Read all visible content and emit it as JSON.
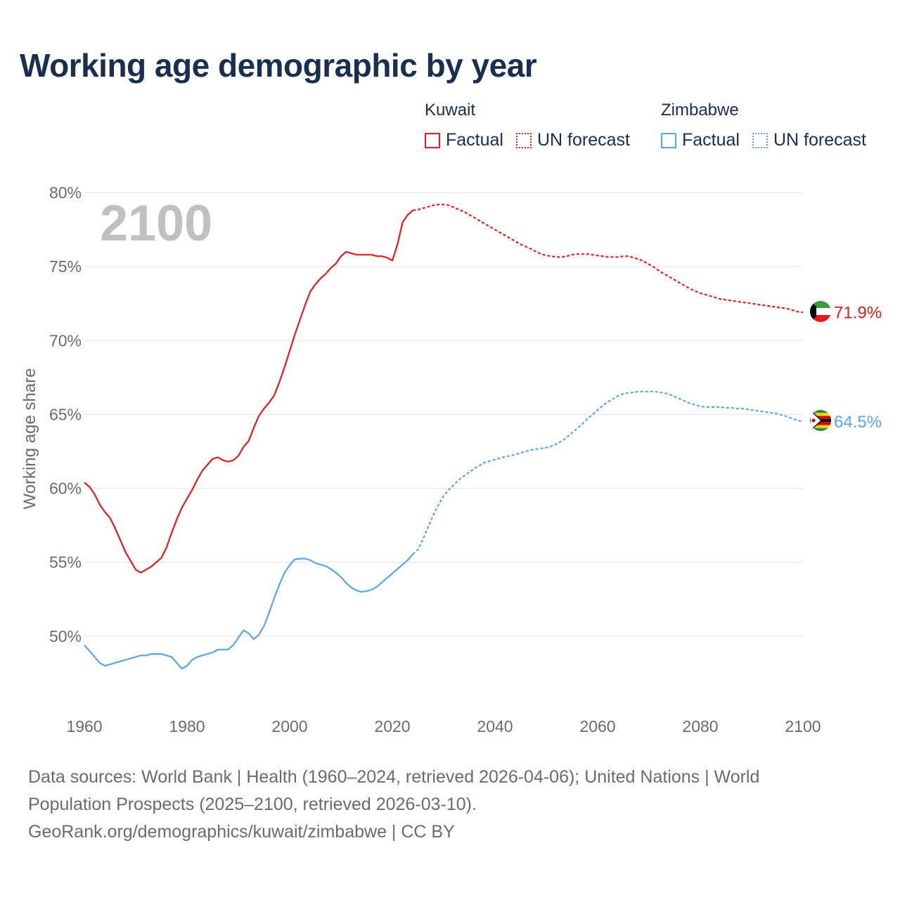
{
  "title": "Working age demographic by year",
  "legend": {
    "kuwait": {
      "name": "Kuwait",
      "factual": "Factual",
      "forecast": "UN forecast"
    },
    "zimbabwe": {
      "name": "Zimbabwe",
      "factual": "Factual",
      "forecast": "UN forecast"
    }
  },
  "colors": {
    "kuwait": "#e8191b",
    "zimbabwe": "#5ba4e6",
    "grid": "#e4e4e4",
    "axis_text": "#6b6b6b",
    "year_watermark": "#c0c0c0"
  },
  "footer": {
    "line1": "Data sources: World Bank | Health (1960–2024, retrieved 2026-04-06); United Nations | World",
    "line2": "Population Prospects (2025–2100, retrieved 2026-03-10).",
    "line3": "GeoRank.org/demographics/kuwait/zimbabwe | CC BY"
  },
  "chart_data": {
    "type": "line",
    "title": "Working age demographic by year",
    "ylabel": "Working age share",
    "xlabel": "",
    "xlim": [
      1960,
      2100
    ],
    "ylim": [
      45,
      80
    ],
    "x_ticks": [
      "1960",
      "1980",
      "2000",
      "2020",
      "2040",
      "2060",
      "2080",
      "2100"
    ],
    "y_ticks": [
      "50%",
      "55%",
      "60%",
      "65%",
      "70%",
      "75%",
      "80%"
    ],
    "year_label": "2100",
    "factual_end_year": 2024,
    "series": [
      {
        "name": "Kuwait",
        "key": "kuwait",
        "end_label": "71.9%",
        "points": [
          [
            1960,
            60.4
          ],
          [
            1961,
            60.1
          ],
          [
            1962,
            59.6
          ],
          [
            1963,
            58.9
          ],
          [
            1964,
            58.4
          ],
          [
            1965,
            58.0
          ],
          [
            1966,
            57.3
          ],
          [
            1967,
            56.5
          ],
          [
            1968,
            55.7
          ],
          [
            1969,
            55.1
          ],
          [
            1970,
            54.5
          ],
          [
            1971,
            54.3
          ],
          [
            1972,
            54.5
          ],
          [
            1973,
            54.7
          ],
          [
            1974,
            55.0
          ],
          [
            1975,
            55.3
          ],
          [
            1976,
            56.0
          ],
          [
            1977,
            57.0
          ],
          [
            1978,
            57.9
          ],
          [
            1979,
            58.7
          ],
          [
            1980,
            59.3
          ],
          [
            1981,
            59.9
          ],
          [
            1982,
            60.6
          ],
          [
            1983,
            61.2
          ],
          [
            1984,
            61.6
          ],
          [
            1985,
            62.0
          ],
          [
            1986,
            62.1
          ],
          [
            1987,
            61.9
          ],
          [
            1988,
            61.8
          ],
          [
            1989,
            61.9
          ],
          [
            1990,
            62.2
          ],
          [
            1991,
            62.8
          ],
          [
            1992,
            63.2
          ],
          [
            1993,
            64.1
          ],
          [
            1994,
            64.9
          ],
          [
            1995,
            65.4
          ],
          [
            1996,
            65.8
          ],
          [
            1997,
            66.3
          ],
          [
            1998,
            67.2
          ],
          [
            1999,
            68.2
          ],
          [
            2000,
            69.3
          ],
          [
            2001,
            70.4
          ],
          [
            2002,
            71.4
          ],
          [
            2003,
            72.4
          ],
          [
            2004,
            73.3
          ],
          [
            2005,
            73.8
          ],
          [
            2006,
            74.2
          ],
          [
            2007,
            74.5
          ],
          [
            2008,
            74.9
          ],
          [
            2009,
            75.2
          ],
          [
            2010,
            75.7
          ],
          [
            2011,
            76.0
          ],
          [
            2012,
            75.9
          ],
          [
            2013,
            75.8
          ],
          [
            2014,
            75.8
          ],
          [
            2015,
            75.8
          ],
          [
            2016,
            75.8
          ],
          [
            2017,
            75.7
          ],
          [
            2018,
            75.7
          ],
          [
            2019,
            75.6
          ],
          [
            2020,
            75.4
          ],
          [
            2021,
            76.5
          ],
          [
            2022,
            78.0
          ],
          [
            2023,
            78.5
          ],
          [
            2024,
            78.8
          ],
          [
            2025,
            78.85
          ],
          [
            2026,
            78.95
          ],
          [
            2027,
            79.05
          ],
          [
            2028,
            79.15
          ],
          [
            2029,
            79.2
          ],
          [
            2030,
            79.2
          ],
          [
            2031,
            79.15
          ],
          [
            2032,
            79.0
          ],
          [
            2033,
            78.85
          ],
          [
            2034,
            78.7
          ],
          [
            2035,
            78.5
          ],
          [
            2036,
            78.3
          ],
          [
            2037,
            78.1
          ],
          [
            2038,
            77.9
          ],
          [
            2039,
            77.7
          ],
          [
            2040,
            77.5
          ],
          [
            2041,
            77.3
          ],
          [
            2042,
            77.1
          ],
          [
            2043,
            76.9
          ],
          [
            2044,
            76.7
          ],
          [
            2045,
            76.5
          ],
          [
            2046,
            76.35
          ],
          [
            2047,
            76.2
          ],
          [
            2048,
            76.0
          ],
          [
            2049,
            75.85
          ],
          [
            2050,
            75.75
          ],
          [
            2051,
            75.7
          ],
          [
            2052,
            75.65
          ],
          [
            2053,
            75.65
          ],
          [
            2054,
            75.7
          ],
          [
            2055,
            75.8
          ],
          [
            2056,
            75.85
          ],
          [
            2057,
            75.85
          ],
          [
            2058,
            75.85
          ],
          [
            2059,
            75.8
          ],
          [
            2060,
            75.75
          ],
          [
            2061,
            75.7
          ],
          [
            2062,
            75.65
          ],
          [
            2063,
            75.65
          ],
          [
            2064,
            75.65
          ],
          [
            2065,
            75.7
          ],
          [
            2066,
            75.7
          ],
          [
            2067,
            75.6
          ],
          [
            2068,
            75.5
          ],
          [
            2069,
            75.35
          ],
          [
            2070,
            75.15
          ],
          [
            2071,
            74.95
          ],
          [
            2072,
            74.7
          ],
          [
            2073,
            74.5
          ],
          [
            2074,
            74.3
          ],
          [
            2075,
            74.1
          ],
          [
            2076,
            73.9
          ],
          [
            2077,
            73.7
          ],
          [
            2078,
            73.5
          ],
          [
            2079,
            73.35
          ],
          [
            2080,
            73.2
          ],
          [
            2081,
            73.1
          ],
          [
            2082,
            73.0
          ],
          [
            2083,
            72.9
          ],
          [
            2084,
            72.8
          ],
          [
            2085,
            72.75
          ],
          [
            2086,
            72.7
          ],
          [
            2087,
            72.65
          ],
          [
            2088,
            72.6
          ],
          [
            2089,
            72.55
          ],
          [
            2090,
            72.5
          ],
          [
            2091,
            72.45
          ],
          [
            2092,
            72.4
          ],
          [
            2093,
            72.35
          ],
          [
            2094,
            72.3
          ],
          [
            2095,
            72.25
          ],
          [
            2096,
            72.2
          ],
          [
            2097,
            72.15
          ],
          [
            2098,
            72.05
          ],
          [
            2099,
            71.95
          ],
          [
            2100,
            71.9
          ]
        ]
      },
      {
        "name": "Zimbabwe",
        "key": "zimbabwe",
        "end_label": "64.5%",
        "points": [
          [
            1960,
            49.4
          ],
          [
            1961,
            49.0
          ],
          [
            1962,
            48.6
          ],
          [
            1963,
            48.2
          ],
          [
            1964,
            48.0
          ],
          [
            1965,
            48.1
          ],
          [
            1966,
            48.2
          ],
          [
            1967,
            48.3
          ],
          [
            1968,
            48.4
          ],
          [
            1969,
            48.5
          ],
          [
            1970,
            48.6
          ],
          [
            1971,
            48.7
          ],
          [
            1972,
            48.7
          ],
          [
            1973,
            48.8
          ],
          [
            1974,
            48.8
          ],
          [
            1975,
            48.8
          ],
          [
            1976,
            48.7
          ],
          [
            1977,
            48.6
          ],
          [
            1978,
            48.2
          ],
          [
            1979,
            47.8
          ],
          [
            1980,
            48.0
          ],
          [
            1981,
            48.4
          ],
          [
            1982,
            48.6
          ],
          [
            1983,
            48.7
          ],
          [
            1984,
            48.8
          ],
          [
            1985,
            48.9
          ],
          [
            1986,
            49.1
          ],
          [
            1987,
            49.1
          ],
          [
            1988,
            49.1
          ],
          [
            1989,
            49.4
          ],
          [
            1990,
            49.9
          ],
          [
            1991,
            50.4
          ],
          [
            1992,
            50.2
          ],
          [
            1993,
            49.8
          ],
          [
            1994,
            50.1
          ],
          [
            1995,
            50.7
          ],
          [
            1996,
            51.6
          ],
          [
            1997,
            52.6
          ],
          [
            1998,
            53.5
          ],
          [
            1999,
            54.3
          ],
          [
            2000,
            54.8
          ],
          [
            2001,
            55.2
          ],
          [
            2002,
            55.25
          ],
          [
            2003,
            55.25
          ],
          [
            2004,
            55.15
          ],
          [
            2005,
            54.95
          ],
          [
            2006,
            54.85
          ],
          [
            2007,
            54.75
          ],
          [
            2008,
            54.55
          ],
          [
            2009,
            54.3
          ],
          [
            2010,
            54.0
          ],
          [
            2011,
            53.6
          ],
          [
            2012,
            53.3
          ],
          [
            2013,
            53.1
          ],
          [
            2014,
            53.0
          ],
          [
            2015,
            53.05
          ],
          [
            2016,
            53.15
          ],
          [
            2017,
            53.35
          ],
          [
            2018,
            53.65
          ],
          [
            2019,
            53.95
          ],
          [
            2020,
            54.25
          ],
          [
            2021,
            54.55
          ],
          [
            2022,
            54.85
          ],
          [
            2023,
            55.15
          ],
          [
            2024,
            55.55
          ],
          [
            2025,
            55.85
          ],
          [
            2026,
            56.6
          ],
          [
            2027,
            57.4
          ],
          [
            2028,
            58.2
          ],
          [
            2029,
            58.9
          ],
          [
            2030,
            59.5
          ],
          [
            2031,
            59.9
          ],
          [
            2032,
            60.25
          ],
          [
            2033,
            60.6
          ],
          [
            2034,
            60.85
          ],
          [
            2035,
            61.1
          ],
          [
            2036,
            61.35
          ],
          [
            2037,
            61.55
          ],
          [
            2038,
            61.75
          ],
          [
            2039,
            61.85
          ],
          [
            2040,
            61.95
          ],
          [
            2041,
            62.05
          ],
          [
            2042,
            62.15
          ],
          [
            2043,
            62.2
          ],
          [
            2044,
            62.3
          ],
          [
            2045,
            62.4
          ],
          [
            2046,
            62.5
          ],
          [
            2047,
            62.6
          ],
          [
            2048,
            62.65
          ],
          [
            2049,
            62.7
          ],
          [
            2050,
            62.75
          ],
          [
            2051,
            62.85
          ],
          [
            2052,
            63.0
          ],
          [
            2053,
            63.2
          ],
          [
            2054,
            63.45
          ],
          [
            2055,
            63.75
          ],
          [
            2056,
            64.05
          ],
          [
            2057,
            64.35
          ],
          [
            2058,
            64.7
          ],
          [
            2059,
            65.0
          ],
          [
            2060,
            65.3
          ],
          [
            2061,
            65.6
          ],
          [
            2062,
            65.85
          ],
          [
            2063,
            66.05
          ],
          [
            2064,
            66.25
          ],
          [
            2065,
            66.4
          ],
          [
            2066,
            66.45
          ],
          [
            2067,
            66.5
          ],
          [
            2068,
            66.55
          ],
          [
            2069,
            66.55
          ],
          [
            2070,
            66.55
          ],
          [
            2071,
            66.55
          ],
          [
            2072,
            66.5
          ],
          [
            2073,
            66.45
          ],
          [
            2074,
            66.35
          ],
          [
            2075,
            66.2
          ],
          [
            2076,
            66.05
          ],
          [
            2077,
            65.9
          ],
          [
            2078,
            65.75
          ],
          [
            2079,
            65.65
          ],
          [
            2080,
            65.55
          ],
          [
            2081,
            65.5
          ],
          [
            2082,
            65.5
          ],
          [
            2083,
            65.5
          ],
          [
            2084,
            65.5
          ],
          [
            2085,
            65.45
          ],
          [
            2086,
            65.45
          ],
          [
            2087,
            65.4
          ],
          [
            2088,
            65.4
          ],
          [
            2089,
            65.35
          ],
          [
            2090,
            65.3
          ],
          [
            2091,
            65.25
          ],
          [
            2092,
            65.2
          ],
          [
            2093,
            65.15
          ],
          [
            2094,
            65.1
          ],
          [
            2095,
            65.05
          ],
          [
            2096,
            64.95
          ],
          [
            2097,
            64.85
          ],
          [
            2098,
            64.7
          ],
          [
            2099,
            64.6
          ],
          [
            2100,
            64.5
          ]
        ]
      }
    ]
  }
}
